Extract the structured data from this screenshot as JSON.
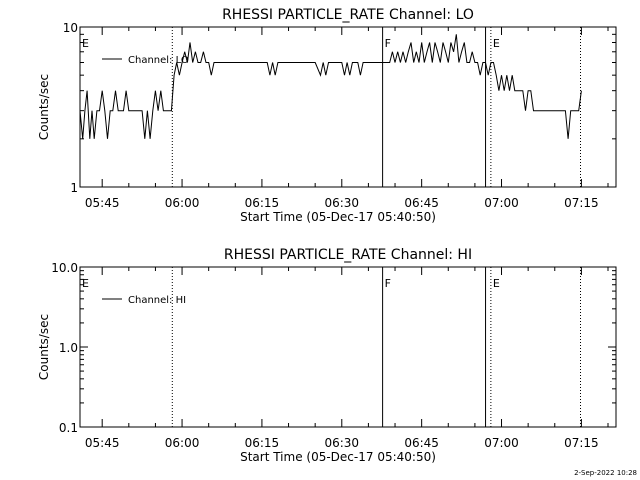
{
  "footer": {
    "timestamp": "2-Sep-2022 10:28"
  },
  "chart_data": [
    {
      "type": "line",
      "title": "RHESSI PARTICLE_RATE Channel: LO",
      "xlabel": "Start Time (05-Dec-17 05:40:50)",
      "ylabel": "Counts/sec",
      "y_scale": "log",
      "ylim": [
        1,
        10
      ],
      "y_ticks": [
        "1",
        "10"
      ],
      "xlim": [
        "05:40:50",
        "07:21:30"
      ],
      "x_ticks": [
        "05:45",
        "06:00",
        "06:15",
        "06:30",
        "06:45",
        "07:00",
        "07:15"
      ],
      "legend": {
        "entries": [
          "Channel: LO"
        ],
        "position": "top-left"
      },
      "series": [
        {
          "name": "Channel: LO",
          "points": [
            [
              "05:40:50",
              3
            ],
            [
              "05:41:20",
              2
            ],
            [
              "05:41:45",
              3
            ],
            [
              "05:42:10",
              4
            ],
            [
              "05:42:40",
              2
            ],
            [
              "05:43:05",
              3
            ],
            [
              "05:43:30",
              2
            ],
            [
              "05:44:00",
              3
            ],
            [
              "05:44:30",
              3
            ],
            [
              "05:45:00",
              4
            ],
            [
              "05:45:30",
              3
            ],
            [
              "05:46:00",
              2
            ],
            [
              "05:46:30",
              3
            ],
            [
              "05:47:00",
              3
            ],
            [
              "05:47:30",
              4
            ],
            [
              "05:48:00",
              3
            ],
            [
              "05:48:30",
              3
            ],
            [
              "05:49:00",
              3
            ],
            [
              "05:49:30",
              4
            ],
            [
              "05:50:00",
              3
            ],
            [
              "05:50:30",
              3
            ],
            [
              "05:51:00",
              3
            ],
            [
              "05:51:30",
              3
            ],
            [
              "05:52:00",
              3
            ],
            [
              "05:52:30",
              3
            ],
            [
              "05:53:00",
              2
            ],
            [
              "05:53:30",
              3
            ],
            [
              "05:54:00",
              2
            ],
            [
              "05:54:30",
              3
            ],
            [
              "05:55:00",
              4
            ],
            [
              "05:55:30",
              3
            ],
            [
              "05:56:00",
              4
            ],
            [
              "05:56:30",
              3
            ],
            [
              "05:57:00",
              3
            ],
            [
              "05:57:30",
              3
            ],
            [
              "05:58:00",
              3
            ],
            [
              "05:58:30",
              5
            ],
            [
              "05:59:00",
              6
            ],
            [
              "05:59:30",
              5
            ],
            [
              "06:00:00",
              6
            ],
            [
              "06:00:30",
              7
            ],
            [
              "06:01:00",
              6
            ],
            [
              "06:01:30",
              8
            ],
            [
              "06:02:00",
              6
            ],
            [
              "06:02:30",
              7
            ],
            [
              "06:03:00",
              6
            ],
            [
              "06:03:30",
              6
            ],
            [
              "06:04:00",
              7
            ],
            [
              "06:04:30",
              6
            ],
            [
              "06:05:00",
              6
            ],
            [
              "06:05:30",
              5
            ],
            [
              "06:06:00",
              6
            ],
            [
              "06:06:30",
              6
            ],
            [
              "06:07:00",
              6
            ],
            [
              "06:08:00",
              6
            ],
            [
              "06:09:00",
              6
            ],
            [
              "06:10:00",
              6
            ],
            [
              "06:11:00",
              6
            ],
            [
              "06:12:00",
              6
            ],
            [
              "06:13:00",
              6
            ],
            [
              "06:14:00",
              6
            ],
            [
              "06:15:00",
              6
            ],
            [
              "06:16:00",
              6
            ],
            [
              "06:16:30",
              5
            ],
            [
              "06:17:00",
              6
            ],
            [
              "06:17:30",
              5
            ],
            [
              "06:18:00",
              6
            ],
            [
              "06:19:00",
              6
            ],
            [
              "06:20:00",
              6
            ],
            [
              "06:21:00",
              6
            ],
            [
              "06:22:00",
              6
            ],
            [
              "06:23:00",
              6
            ],
            [
              "06:24:00",
              6
            ],
            [
              "06:25:00",
              6
            ],
            [
              "06:26:00",
              5
            ],
            [
              "06:26:30",
              6
            ],
            [
              "06:27:00",
              5
            ],
            [
              "06:27:30",
              6
            ],
            [
              "06:28:00",
              6
            ],
            [
              "06:29:00",
              6
            ],
            [
              "06:30:00",
              6
            ],
            [
              "06:30:30",
              5
            ],
            [
              "06:31:00",
              6
            ],
            [
              "06:31:30",
              5
            ],
            [
              "06:32:00",
              6
            ],
            [
              "06:33:00",
              6
            ],
            [
              "06:33:30",
              5
            ],
            [
              "06:34:00",
              6
            ],
            [
              "06:35:00",
              6
            ],
            [
              "06:36:00",
              6
            ],
            [
              "06:37:00",
              6
            ],
            [
              "06:38:00",
              6
            ],
            [
              "06:39:00",
              6
            ],
            [
              "06:39:30",
              7
            ],
            [
              "06:40:00",
              6
            ],
            [
              "06:40:30",
              7
            ],
            [
              "06:41:00",
              6
            ],
            [
              "06:41:30",
              7
            ],
            [
              "06:42:00",
              6
            ],
            [
              "06:42:30",
              7
            ],
            [
              "06:43:00",
              8
            ],
            [
              "06:43:30",
              6
            ],
            [
              "06:44:00",
              7
            ],
            [
              "06:44:30",
              6
            ],
            [
              "06:45:00",
              8
            ],
            [
              "06:45:30",
              6
            ],
            [
              "06:46:00",
              7
            ],
            [
              "06:46:30",
              8
            ],
            [
              "06:47:00",
              6
            ],
            [
              "06:47:30",
              8
            ],
            [
              "06:48:00",
              7
            ],
            [
              "06:48:30",
              6
            ],
            [
              "06:49:00",
              8
            ],
            [
              "06:49:30",
              7
            ],
            [
              "06:50:00",
              6
            ],
            [
              "06:50:30",
              8
            ],
            [
              "06:51:00",
              7
            ],
            [
              "06:51:30",
              9
            ],
            [
              "06:52:00",
              6
            ],
            [
              "06:52:30",
              7
            ],
            [
              "06:53:00",
              8
            ],
            [
              "06:53:30",
              6
            ],
            [
              "06:54:00",
              6
            ],
            [
              "06:54:30",
              7
            ],
            [
              "06:55:00",
              6
            ],
            [
              "06:55:30",
              6
            ],
            [
              "06:56:00",
              5
            ],
            [
              "06:56:30",
              6
            ],
            [
              "06:57:00",
              6
            ],
            [
              "06:57:30",
              5
            ],
            [
              "06:58:00",
              6
            ],
            [
              "06:58:30",
              6
            ],
            [
              "06:59:00",
              5
            ],
            [
              "06:59:30",
              4
            ],
            [
              "07:00:00",
              5
            ],
            [
              "07:00:30",
              4
            ],
            [
              "07:01:00",
              5
            ],
            [
              "07:01:30",
              4
            ],
            [
              "07:02:00",
              5
            ],
            [
              "07:02:30",
              4
            ],
            [
              "07:03:00",
              4
            ],
            [
              "07:03:30",
              4
            ],
            [
              "07:04:00",
              4
            ],
            [
              "07:04:30",
              3
            ],
            [
              "07:05:00",
              4
            ],
            [
              "07:05:30",
              4
            ],
            [
              "07:06:00",
              3
            ],
            [
              "07:06:30",
              3
            ],
            [
              "07:07:00",
              3
            ],
            [
              "07:08:00",
              3
            ],
            [
              "07:09:00",
              3
            ],
            [
              "07:10:00",
              3
            ],
            [
              "07:11:00",
              3
            ],
            [
              "07:12:00",
              3
            ],
            [
              "07:12:30",
              2
            ],
            [
              "07:13:00",
              3
            ],
            [
              "07:14:00",
              3
            ],
            [
              "07:14:30",
              3
            ],
            [
              "07:15:00",
              4
            ]
          ]
        }
      ],
      "annotations": [
        {
          "label": "E",
          "time": "05:40:50",
          "line": "none"
        },
        {
          "label": "",
          "time": "05:58:10",
          "line": "dotted"
        },
        {
          "label": "F",
          "time": "06:37:40",
          "line": "solid"
        },
        {
          "label": "",
          "time": "06:57:00",
          "line": "solid"
        },
        {
          "label": "E",
          "time": "06:58:00",
          "line": "dotted"
        },
        {
          "label": "",
          "time": "07:14:50",
          "line": "dotted"
        }
      ]
    },
    {
      "type": "line",
      "title": "RHESSI PARTICLE_RATE Channel: HI",
      "xlabel": "Start Time (05-Dec-17 05:40:50)",
      "ylabel": "Counts/sec",
      "y_scale": "log",
      "ylim": [
        0.1,
        10
      ],
      "y_ticks": [
        "0.1",
        "1.0",
        "10.0"
      ],
      "xlim": [
        "05:40:50",
        "07:21:30"
      ],
      "x_ticks": [
        "05:45",
        "06:00",
        "06:15",
        "06:30",
        "06:45",
        "07:00",
        "07:15"
      ],
      "legend": {
        "entries": [
          "Channel: HI"
        ],
        "position": "top-left"
      },
      "series": [
        {
          "name": "Channel: HI",
          "points": []
        }
      ],
      "annotations": [
        {
          "label": "E",
          "time": "05:40:50",
          "line": "none"
        },
        {
          "label": "",
          "time": "05:58:10",
          "line": "dotted"
        },
        {
          "label": "F",
          "time": "06:37:40",
          "line": "solid"
        },
        {
          "label": "",
          "time": "06:57:00",
          "line": "solid"
        },
        {
          "label": "E",
          "time": "06:58:00",
          "line": "dotted"
        },
        {
          "label": "",
          "time": "07:14:50",
          "line": "dotted"
        }
      ]
    }
  ]
}
